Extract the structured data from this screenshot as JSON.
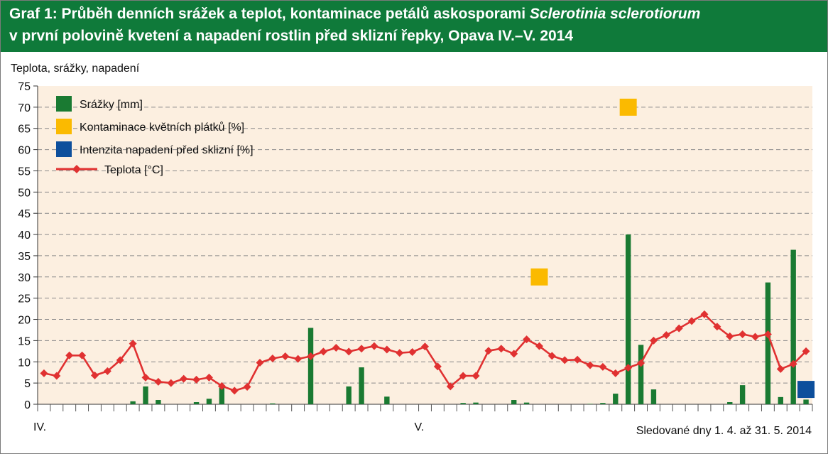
{
  "title": {
    "line1_prefix": "Graf 1: Průběh denních srážek a teplot, kontaminace petálů askosporami ",
    "line1_italic": "Sclerotinia sclerotiorum",
    "line2": "v první polovině kvetení a napadení rostlin před sklizní řepky, Opava IV.–V. 2014"
  },
  "colors": {
    "title_bg": "#0f7a3a",
    "plot_bg": "#fcefe0",
    "precip": "#1a7a32",
    "contamination": "#fbba00",
    "infestation": "#0d4f9c",
    "temperature": "#e03131"
  },
  "chart_data": {
    "type": "bar+line",
    "ylabel": "Teplota, srážky, napadení",
    "xlabel": "Sledované dny 1. 4. až 31. 5. 2014",
    "month_labels": [
      {
        "label": "IV.",
        "day_index": 0
      },
      {
        "label": "V.",
        "day_index": 30
      }
    ],
    "ylim": [
      0,
      75
    ],
    "yticks": [
      0,
      5,
      10,
      15,
      20,
      25,
      30,
      35,
      40,
      45,
      50,
      55,
      60,
      65,
      70,
      75
    ],
    "grid": "dashed horizontal",
    "legend_position": "top-left",
    "days": 61,
    "series": [
      {
        "name": "Srážky [mm]",
        "type": "bar",
        "values": [
          0,
          0,
          0,
          0,
          0,
          0,
          0,
          0.7,
          4.2,
          1,
          0,
          0,
          0.5,
          1.3,
          4,
          0,
          0,
          0,
          0.2,
          0,
          0,
          18,
          0,
          0,
          4.2,
          8.7,
          0,
          1.8,
          0,
          0,
          0,
          0,
          0,
          0.3,
          0.4,
          0,
          0,
          1,
          0.4,
          0,
          0,
          0,
          0,
          0.1,
          0.3,
          2.5,
          40,
          14,
          3.5,
          0,
          0,
          0,
          0,
          0,
          0.5,
          4.5,
          0,
          28.7,
          1.7,
          36.4,
          1.1
        ]
      },
      {
        "name": "Kontaminace květních plátků [%]",
        "type": "scatter",
        "points": [
          {
            "day_index": 39,
            "value": 30
          },
          {
            "day_index": 46,
            "value": 70
          }
        ]
      },
      {
        "name": "Intenzita napadení před sklizní [%]",
        "type": "scatter",
        "points": [
          {
            "day_index": 60,
            "value": 3.5
          }
        ]
      },
      {
        "name": "Teplota [°C]",
        "type": "line",
        "values": [
          7.3,
          6.7,
          11.5,
          11.5,
          6.8,
          7.8,
          10.4,
          14.3,
          6.3,
          5.3,
          5,
          6,
          5.8,
          6.3,
          4.3,
          3.2,
          4.1,
          9.8,
          10.8,
          11.3,
          10.7,
          11.3,
          12.4,
          13.3,
          12.4,
          13.1,
          13.7,
          12.9,
          12.1,
          12.3,
          13.6,
          8.9,
          4.2,
          6.7,
          6.7,
          12.6,
          13.1,
          11.9,
          15.3,
          13.7,
          11.4,
          10.4,
          10.5,
          9.2,
          8.8,
          7.3,
          8.6,
          9.7,
          15,
          16.3,
          17.9,
          19.6,
          21.2,
          18.3,
          16,
          16.5,
          15.9,
          16.5,
          8.3,
          9.5,
          12.5
        ]
      }
    ]
  }
}
